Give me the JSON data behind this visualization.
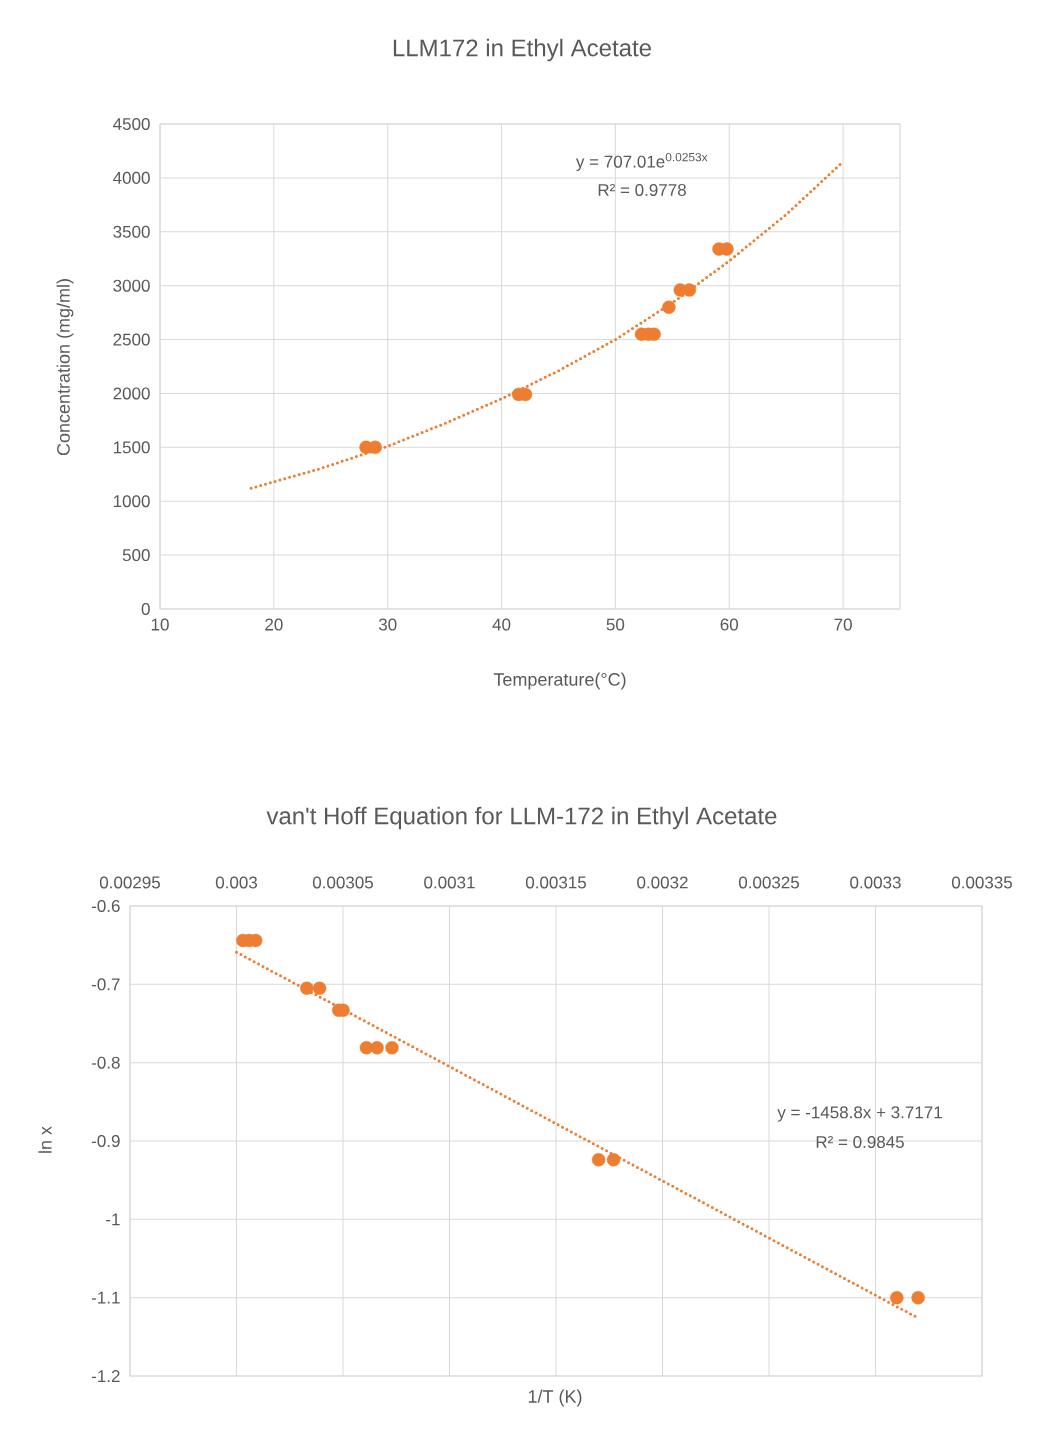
{
  "chart_data": [
    {
      "type": "scatter",
      "title": "LLM172 in Ethyl Acetate",
      "xlabel": "Temperature(°C)",
      "ylabel": "Concentration (mg/ml)",
      "annotations": [
        "y = 707.01e$^{0.0253x}$",
        "R² = 0.9778"
      ],
      "xlim": [
        10,
        75
      ],
      "ylim": [
        0,
        4500
      ],
      "xticks": [
        10,
        20,
        30,
        40,
        50,
        60,
        70
      ],
      "yticks": [
        0,
        500,
        1000,
        1500,
        2000,
        2500,
        3000,
        3500,
        4000,
        4500
      ],
      "grid": true,
      "series": [
        {
          "color": "#ed7d31",
          "marker": "circle",
          "x": [
            28.1,
            28.9,
            41.5,
            42.1,
            52.3,
            52.9,
            53.4,
            54.7,
            55.7,
            56.5,
            59.1,
            59.8
          ],
          "values": [
            1500,
            1500,
            1990,
            1990,
            2550,
            2550,
            2550,
            2800,
            2960,
            2960,
            3340,
            3340
          ]
        },
        {
          "type": "line",
          "color": "#ed7d31",
          "marker": "none",
          "line_style": "dotted",
          "x": [
            18,
            24,
            30,
            35,
            40,
            45,
            50,
            55,
            60,
            65,
            70
          ],
          "values": [
            1120,
            1300,
            1510,
            1720,
            1950,
            2210,
            2500,
            2840,
            3230,
            3660,
            4150
          ]
        }
      ]
    },
    {
      "type": "scatter",
      "title": "van't Hoff Equation for LLM-172 in Ethyl Acetate",
      "xlabel": "1/T (K)",
      "ylabel": "ln x",
      "annotations": [
        "y = -1458.8x + 3.7171",
        "R² = 0.9845"
      ],
      "xlim": [
        0.00295,
        0.00335
      ],
      "ylim": [
        -1.2,
        -0.6
      ],
      "xticks": [
        0.00295,
        0.003,
        0.00305,
        0.0031,
        0.00315,
        0.0032,
        0.00325,
        0.0033,
        0.00335
      ],
      "yticks": [
        -1.2,
        -1.1,
        -1,
        -0.9,
        -0.8,
        -0.7,
        -0.6
      ],
      "grid": true,
      "series": [
        {
          "color": "#ed7d31",
          "marker": "circle",
          "x": [
            0.003003,
            0.003006,
            0.003009,
            0.003033,
            0.003039,
            0.003048,
            0.00305,
            0.003061,
            0.003066,
            0.003073,
            0.00317,
            0.003177,
            0.00331,
            0.00332
          ],
          "values": [
            -0.644,
            -0.644,
            -0.644,
            -0.705,
            -0.705,
            -0.733,
            -0.733,
            -0.781,
            -0.781,
            -0.781,
            -0.924,
            -0.924,
            -1.1,
            -1.1
          ]
        },
        {
          "type": "line",
          "color": "#ed7d31",
          "marker": "none",
          "line_style": "dotted",
          "x": [
            0.003,
            0.00332
          ],
          "values": [
            -0.659,
            -1.126
          ]
        }
      ]
    }
  ]
}
